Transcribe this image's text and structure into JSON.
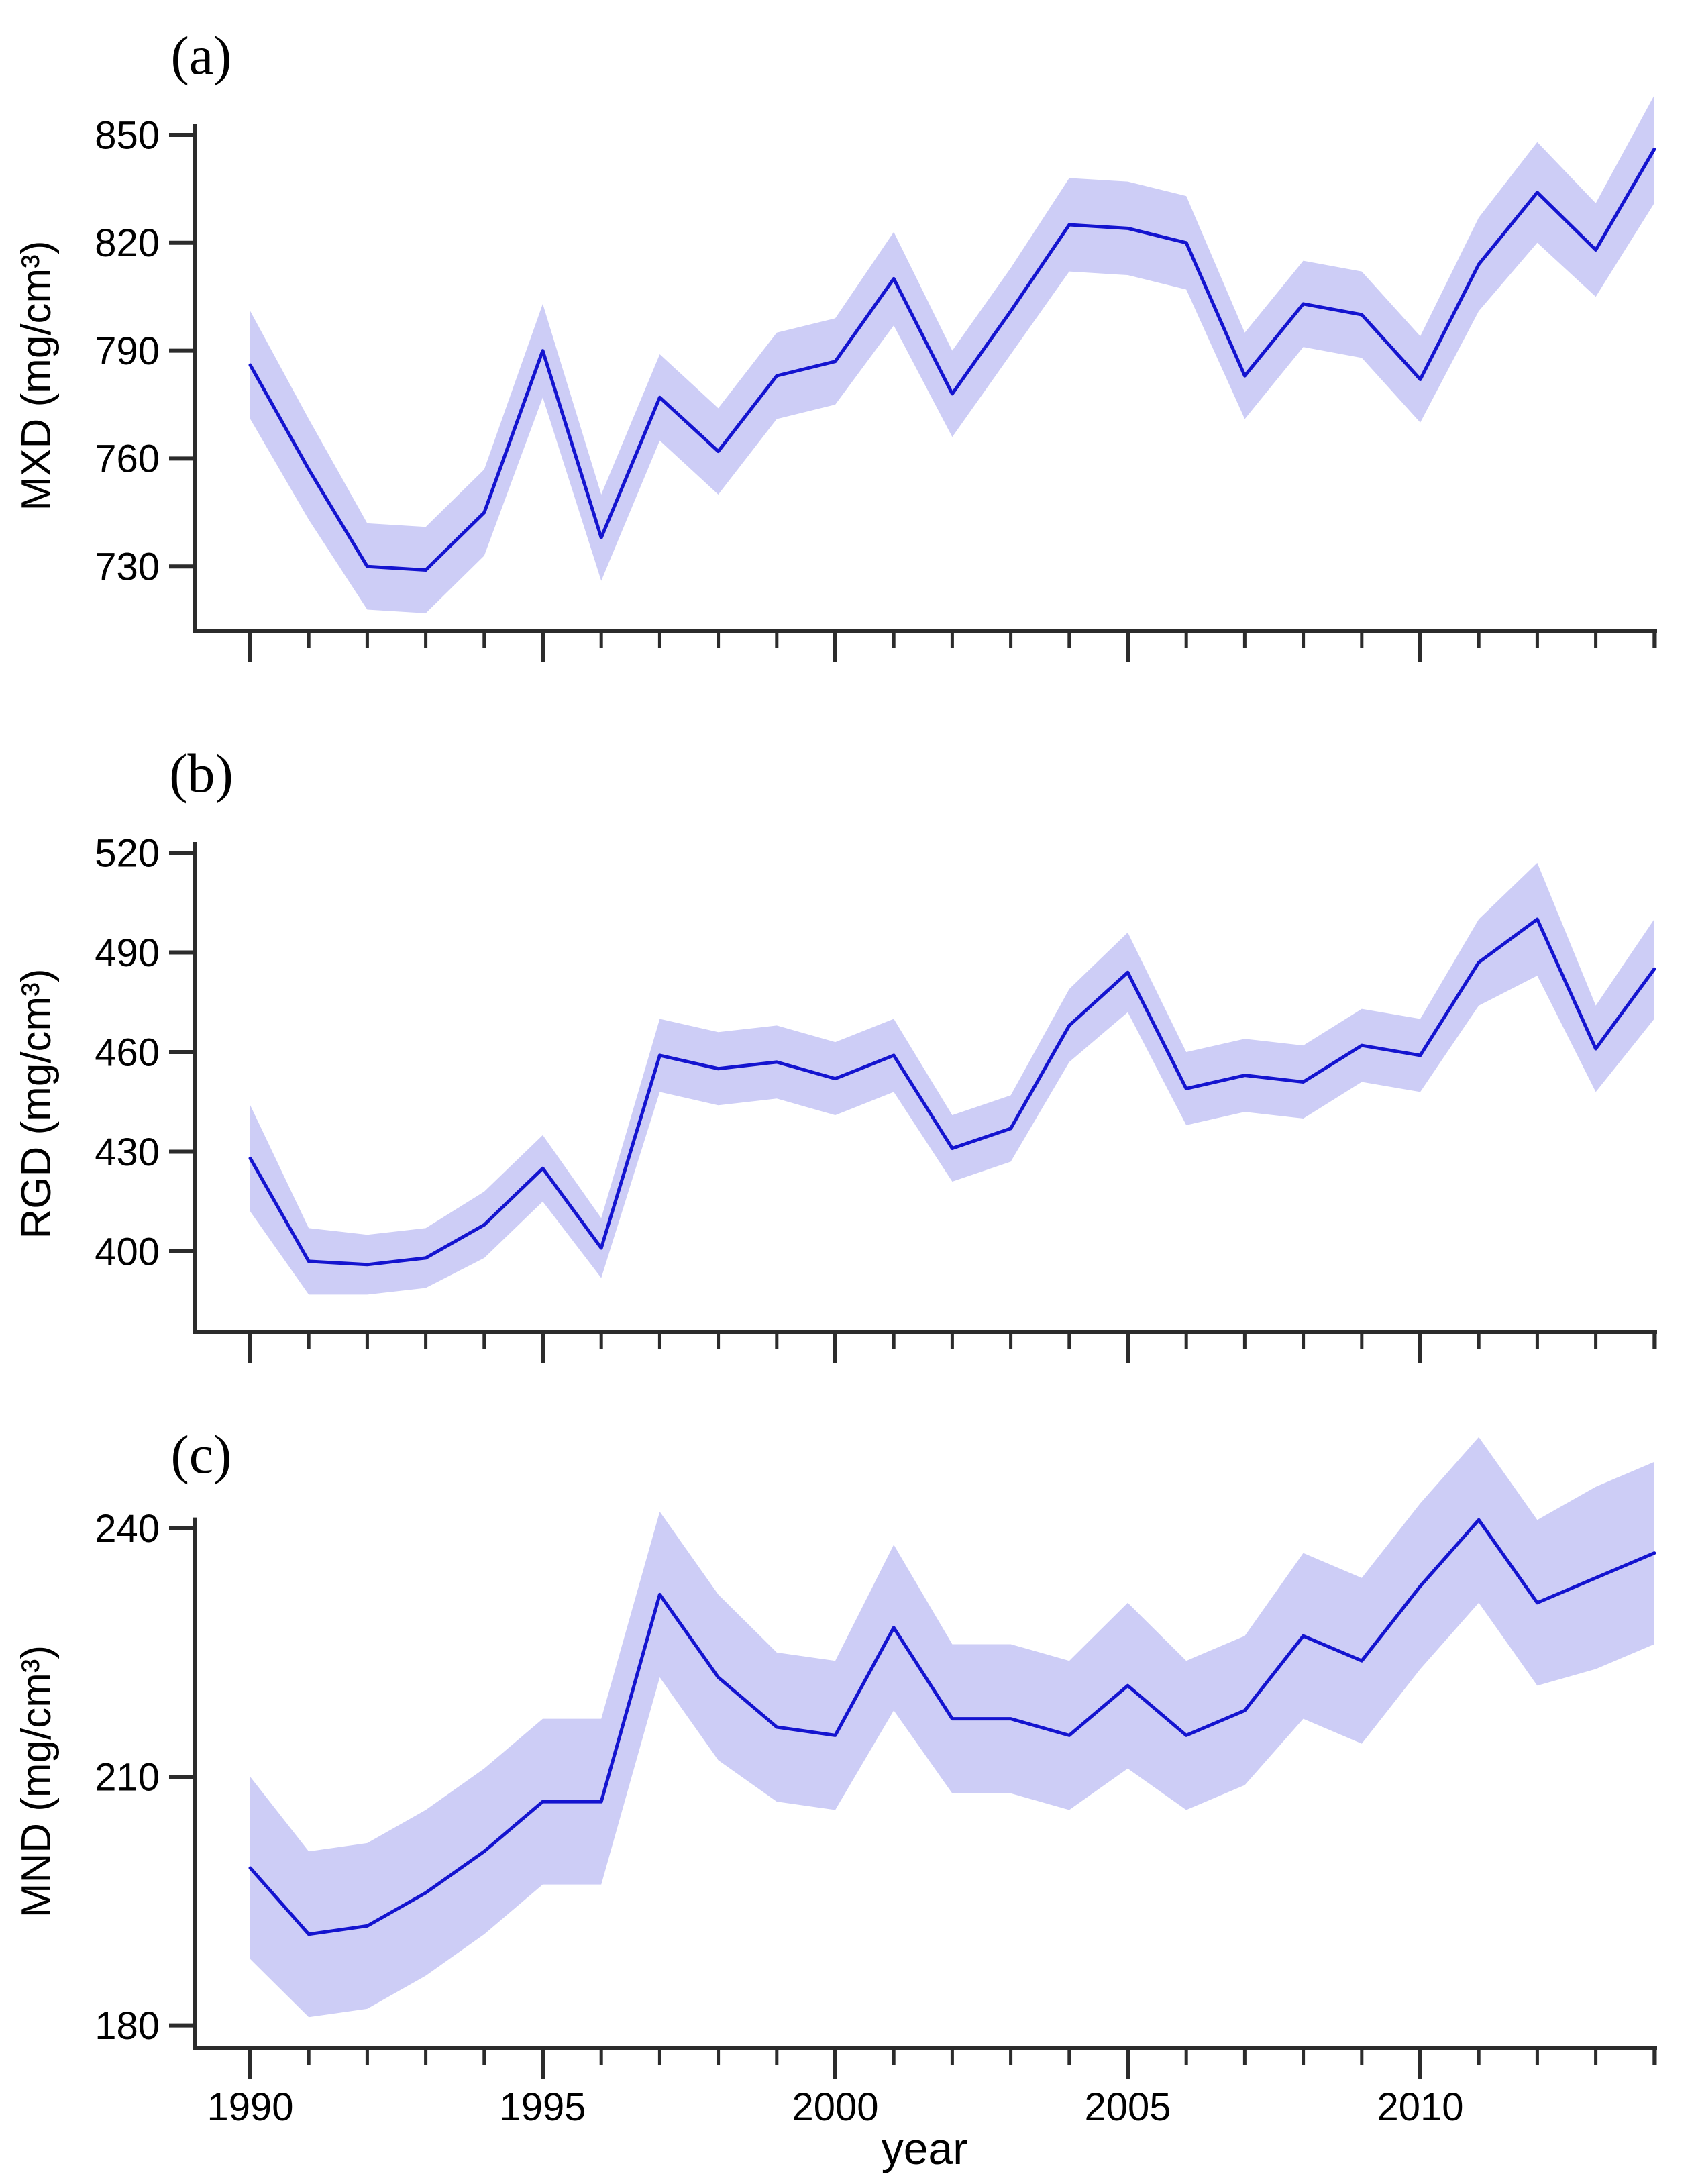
{
  "chart_data": {
    "type": "line",
    "subtype": "line-with-confidence-band",
    "title": "",
    "xlabel": "year",
    "x": [
      1990,
      1991,
      1992,
      1993,
      1994,
      1995,
      1996,
      1997,
      1998,
      1999,
      2000,
      2001,
      2002,
      2003,
      2004,
      2005,
      2006,
      2007,
      2008,
      2009,
      2010,
      2011,
      2012,
      2013,
      2014
    ],
    "x_major_ticks": [
      1990,
      1995,
      2000,
      2005,
      2010
    ],
    "x_range": [
      1990,
      2014
    ],
    "grid": "off",
    "legend": "none",
    "line_color": "#1414cf",
    "band_color": "#cdcdf6",
    "axis_color": "#2b2b2b",
    "panels": [
      {
        "label": "(a)",
        "ylabel": "MXD (mg/cm³)",
        "yticks": [
          850,
          820,
          790,
          760,
          730
        ],
        "ylim": [
          712,
          864
        ],
        "series": [
          {
            "name": "MXD mean",
            "values": [
              786,
              757,
              730,
              729,
              745,
              790,
              738,
              777,
              762,
              783,
              787,
              810,
              778,
              801,
              825,
              824,
              820,
              783,
              803,
              800,
              782,
              814,
              834,
              818,
              846
            ],
            "band_halfwidth": [
              15,
              14,
              12,
              12,
              12,
              13,
              12,
              12,
              12,
              12,
              12,
              13,
              12,
              12,
              13,
              13,
              13,
              12,
              12,
              12,
              12,
              13,
              14,
              13,
              15
            ]
          }
        ]
      },
      {
        "label": "(b)",
        "ylabel": "RGD (mg/cm³)",
        "yticks": [
          520,
          490,
          460,
          430,
          400
        ],
        "ylim": [
          383,
          530
        ],
        "series": [
          {
            "name": "RGD mean",
            "values": [
              428,
              397,
              396,
              398,
              408,
              425,
              401,
              459,
              455,
              457,
              452,
              459,
              431,
              437,
              468,
              484,
              449,
              453,
              451,
              462,
              459,
              487,
              500,
              461,
              485
            ],
            "band_halfwidth": [
              16,
              10,
              9,
              9,
              10,
              10,
              9,
              11,
              11,
              11,
              11,
              11,
              10,
              10,
              11,
              12,
              11,
              11,
              11,
              11,
              11,
              13,
              17,
              13,
              15
            ]
          }
        ]
      },
      {
        "label": "(c)",
        "ylabel": "MND (mg/cm³)",
        "yticks": [
          240,
          210,
          180
        ],
        "ylim": [
          175,
          253
        ],
        "series": [
          {
            "name": "MND mean",
            "values": [
              199,
              191,
              192,
              196,
              201,
              207,
              207,
              232,
              222,
              216,
              215,
              228,
              217,
              217,
              215,
              221,
              215,
              218,
              227,
              224,
              233,
              241,
              231,
              234,
              237
            ],
            "band_halfwidth": [
              11,
              10,
              10,
              10,
              10,
              10,
              10,
              10,
              10,
              9,
              9,
              10,
              9,
              9,
              9,
              10,
              9,
              9,
              10,
              10,
              10,
              10,
              10,
              11,
              11
            ]
          }
        ]
      }
    ]
  }
}
